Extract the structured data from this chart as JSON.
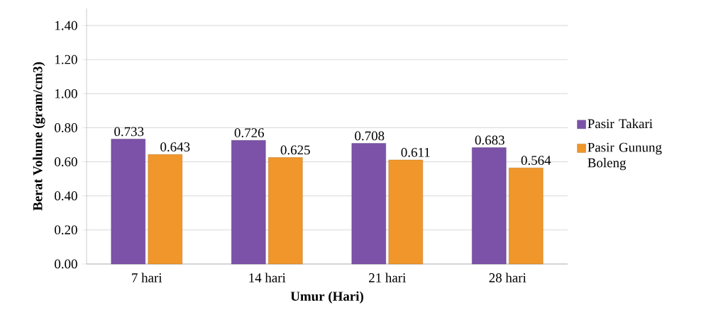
{
  "chart_data": {
    "type": "bar",
    "xlabel": "Umur (Hari)",
    "ylabel": "Berat Volume (gram/cm3)",
    "categories": [
      "7 hari",
      "14 hari",
      "21 hari",
      "28 hari"
    ],
    "series": [
      {
        "name": "Pasir Takari",
        "color": "#7b52a8",
        "values": [
          0.733,
          0.726,
          0.708,
          0.683
        ]
      },
      {
        "name": "Pasir Gunung Boleng",
        "color": "#f0962a",
        "values": [
          0.643,
          0.625,
          0.611,
          0.564
        ]
      }
    ],
    "ylim": [
      0,
      1.5
    ],
    "yticks": [
      {
        "value": 0,
        "label": "0.00"
      },
      {
        "value": 0.2,
        "label": "0.20"
      },
      {
        "value": 0.4,
        "label": "0.40"
      },
      {
        "value": 0.6,
        "label": "0.60"
      },
      {
        "value": 0.8,
        "label": "0.80"
      },
      {
        "value": 1.0,
        "label": "1.00"
      },
      {
        "value": 1.2,
        "label": "1.20"
      },
      {
        "value": 1.4,
        "label": "1.40"
      }
    ],
    "grid": "y",
    "legend": "right",
    "data_labels": true
  }
}
